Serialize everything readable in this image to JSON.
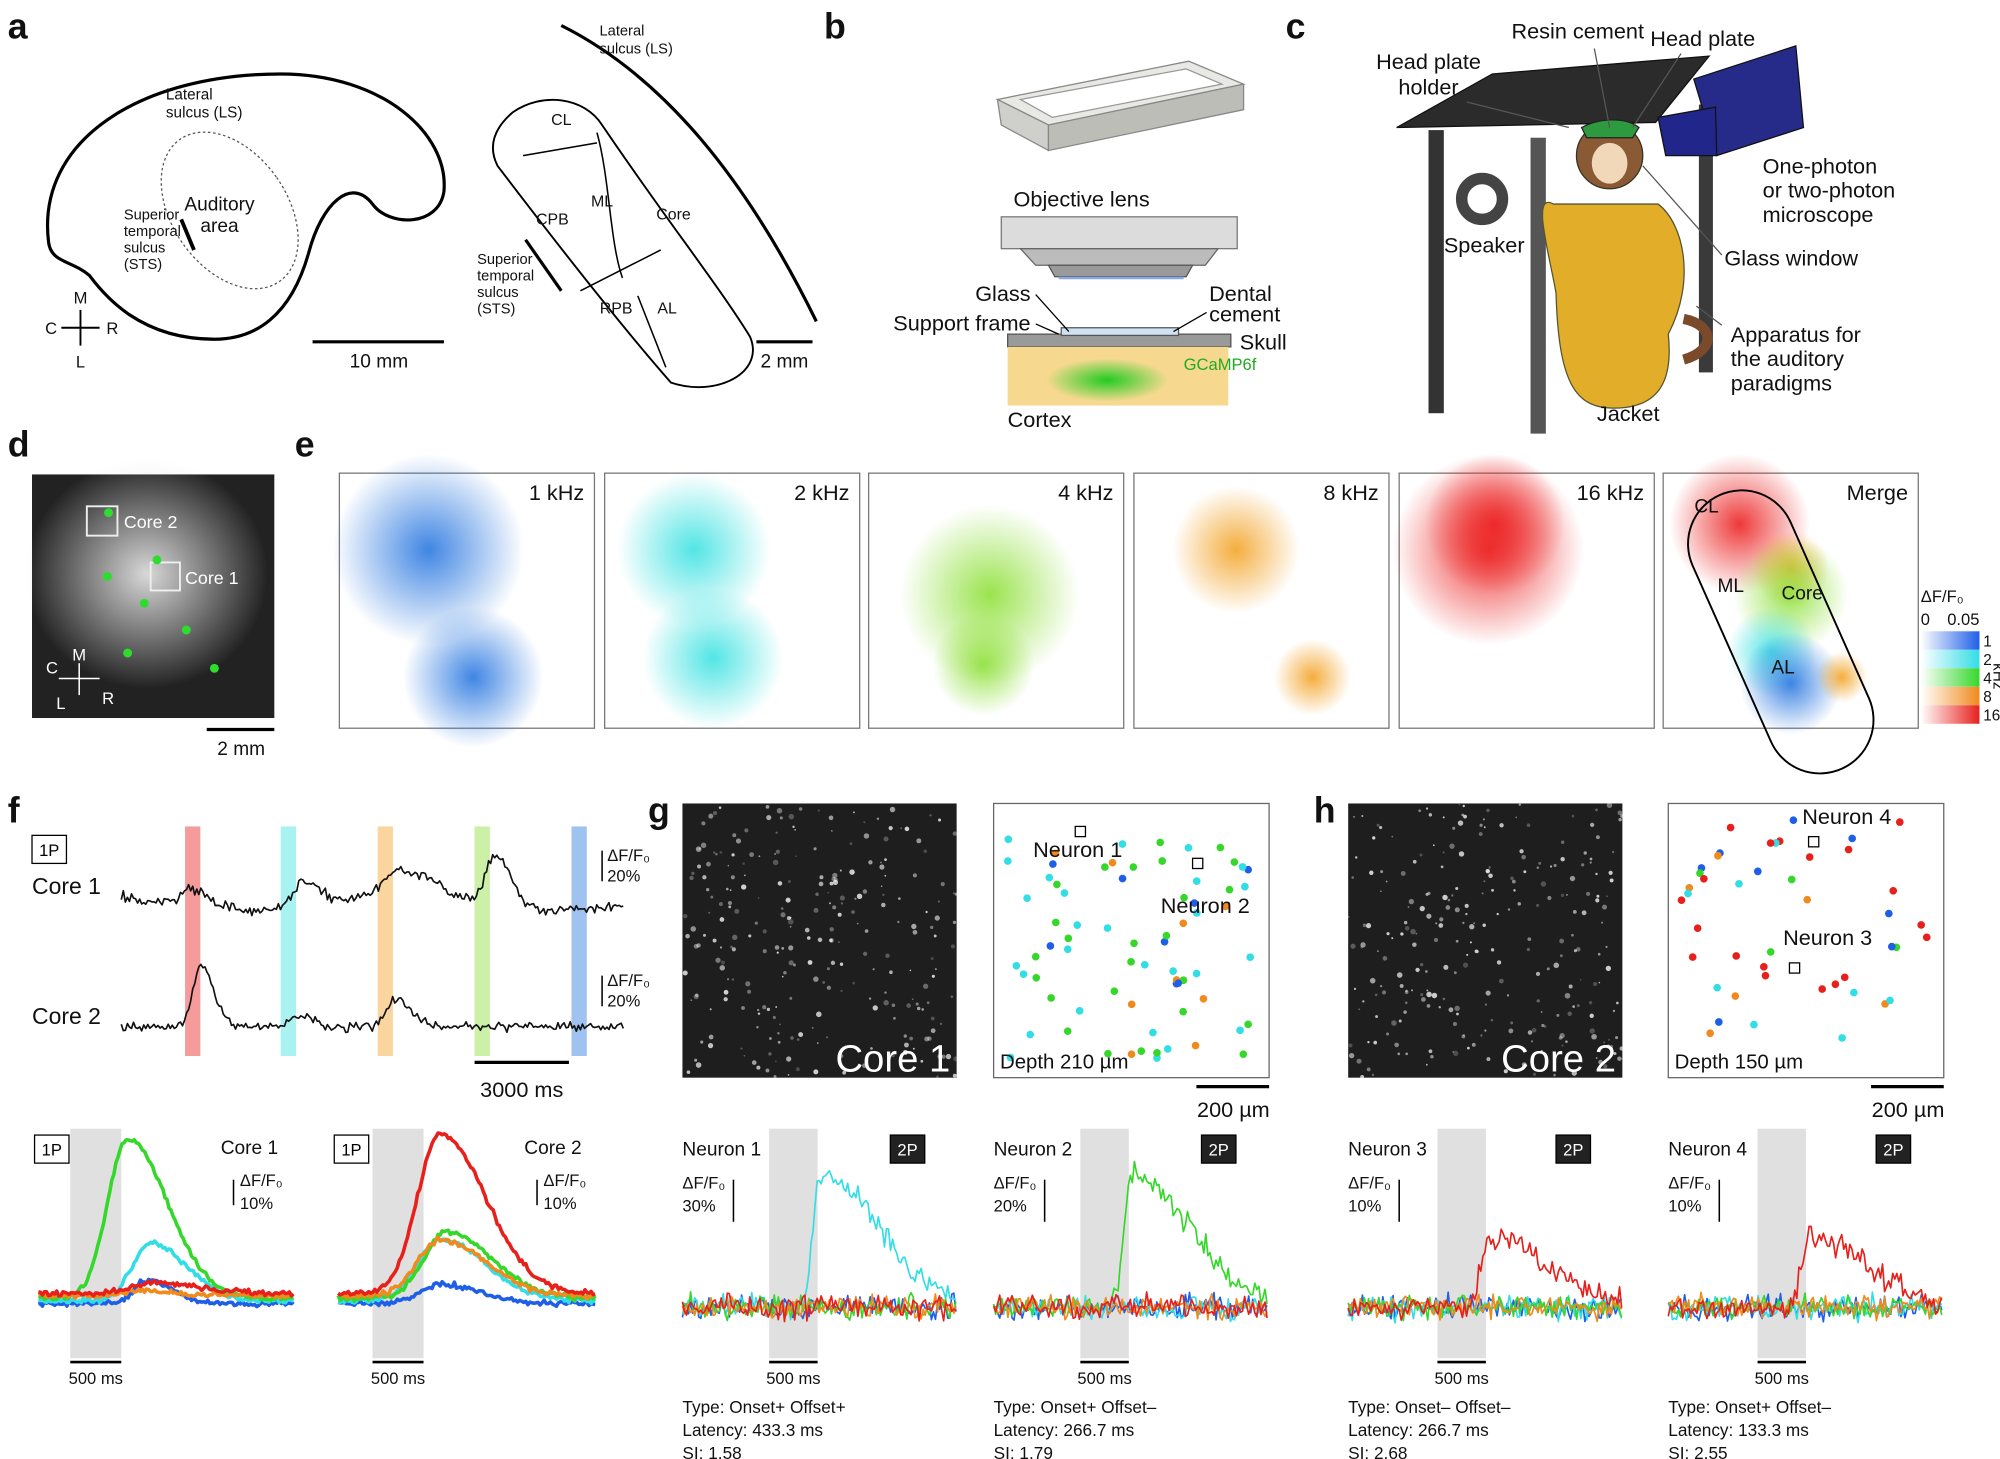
{
  "panel_a": {
    "label": "a",
    "brain": {
      "sulcus_lateral": [
        "Lateral",
        "sulcus (LS)"
      ],
      "auditory_area": [
        "Auditory",
        "area"
      ],
      "sulcus_temporal": [
        "Superior",
        "temporal",
        "sulcus",
        "(STS)"
      ],
      "compass": {
        "m": "M",
        "c": "C",
        "r": "R",
        "l": "L"
      },
      "scale_bar": "10 mm"
    },
    "map": {
      "sulcus_lateral": [
        "Lateral",
        "sulcus (LS)"
      ],
      "areas": [
        "CL",
        "CPB",
        "ML",
        "Core",
        "RPB",
        "AL"
      ],
      "sulcus_temporal": [
        "Superior",
        "temporal",
        "sulcus",
        "(STS)"
      ],
      "scale_bar": "2 mm"
    }
  },
  "panel_b": {
    "label": "b",
    "objective": "Objective lens",
    "glass": "Glass",
    "support_frame": "Support frame",
    "dental_cement": [
      "Dental",
      "cement"
    ],
    "skull": "Skull",
    "indicator": "GCaMP6f",
    "cortex": "Cortex"
  },
  "panel_c": {
    "label": "c",
    "resin_cement": "Resin cement",
    "head_plate": "Head plate",
    "head_plate_holder": [
      "Head plate",
      "holder"
    ],
    "microscope": [
      "One-photon",
      "or two-photon",
      "microscope"
    ],
    "speaker": "Speaker",
    "glass_window": "Glass window",
    "apparatus": [
      "Apparatus for",
      "the auditory",
      "paradigms"
    ],
    "jacket": "Jacket"
  },
  "panel_d": {
    "label": "d",
    "rois": [
      "Core 2",
      "Core 1"
    ],
    "compass": {
      "c": "C",
      "m": "M",
      "l": "L",
      "r": "R"
    },
    "scale_bar": "2 mm"
  },
  "panel_e": {
    "label": "e",
    "maps": [
      "1 kHz",
      "2 kHz",
      "4 kHz",
      "8 kHz",
      "16 kHz",
      "Merge"
    ],
    "merge_areas": [
      "CL",
      "ML",
      "Core",
      "AL"
    ],
    "colorbar": {
      "title": "ΔF/F₀",
      "min": "0",
      "max": "0.05",
      "frequencies": [
        "1",
        "2",
        "4",
        "8",
        "16"
      ],
      "unit": "kHz"
    }
  },
  "panel_f": {
    "label": "f",
    "badge": "1P",
    "rows": [
      "Core 1",
      "Core 2"
    ],
    "scales": [
      [
        "ΔF/F₀",
        "20%"
      ],
      [
        "ΔF/F₀",
        "20%"
      ]
    ],
    "time_bar": "3000 ms",
    "averages": [
      {
        "badge": "1P",
        "title": "Core 1",
        "scale": [
          "ΔF/F₀",
          "10%"
        ],
        "time_bar": "500 ms"
      },
      {
        "badge": "1P",
        "title": "Core 2",
        "scale": [
          "ΔF/F₀",
          "10%"
        ],
        "time_bar": "500 ms"
      }
    ]
  },
  "panel_g": {
    "label": "g",
    "image_label": "Core 1",
    "neurons": [
      "Neuron 1",
      "Neuron 2"
    ],
    "depth": "Depth 210 µm",
    "scale_bar": "200 µm",
    "traces": [
      {
        "title": "Neuron 1",
        "badge": "2P",
        "scale": [
          "ΔF/F₀",
          "30%"
        ],
        "time_bar": "500 ms",
        "stats": [
          "Type: Onset+ Offset+",
          "Latency: 433.3 ms",
          "SI: 1.58"
        ]
      },
      {
        "title": "Neuron 2",
        "badge": "2P",
        "scale": [
          "ΔF/F₀",
          "20%"
        ],
        "time_bar": "500 ms",
        "stats": [
          "Type: Onset+ Offset–",
          "Latency: 266.7 ms",
          "SI: 1.79"
        ]
      }
    ]
  },
  "panel_h": {
    "label": "h",
    "image_label": "Core 2",
    "neurons": [
      "Neuron 4",
      "Neuron 3"
    ],
    "depth": "Depth 150 µm",
    "scale_bar": "200 µm",
    "traces": [
      {
        "title": "Neuron 3",
        "badge": "2P",
        "scale": [
          "ΔF/F₀",
          "10%"
        ],
        "time_bar": "500 ms",
        "stats": [
          "Type: Onset– Offset–",
          "Latency: 266.7 ms",
          "SI: 2.68"
        ]
      },
      {
        "title": "Neuron 4",
        "badge": "2P",
        "scale": [
          "ΔF/F₀",
          "10%"
        ],
        "time_bar": "500 ms",
        "stats": [
          "Type: Onset+ Offset–",
          "Latency: 133.3 ms",
          "SI: 2.55"
        ]
      }
    ]
  }
}
